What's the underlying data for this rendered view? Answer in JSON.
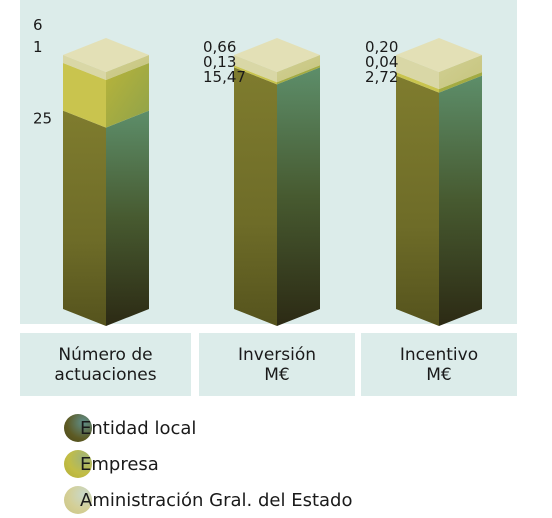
{
  "chart_data": {
    "type": "bar",
    "stacked": "percent",
    "categories": [
      "Número de\nactuaciones",
      "Inversión\nM€",
      "Incentivo\nM€"
    ],
    "series": [
      {
        "name": "Entidad local",
        "values": [
          25,
          15.47,
          2.72
        ],
        "labels": [
          "25",
          "15,47",
          "2,72"
        ]
      },
      {
        "name": "Empresa",
        "values": [
          6,
          0.13,
          0.04
        ],
        "labels": [
          "6",
          "0,13",
          "0,04"
        ]
      },
      {
        "name": "Aministración Gral. del Estado",
        "values": [
          1,
          0.66,
          0.2
        ],
        "labels": [
          "1",
          "0,66",
          "0,20"
        ]
      }
    ]
  },
  "colors": {
    "plot_background": "#dcecea",
    "entidad_local": "#7d7a2e",
    "empresa": "#c9c44e",
    "administracion": "#d8d39a"
  }
}
